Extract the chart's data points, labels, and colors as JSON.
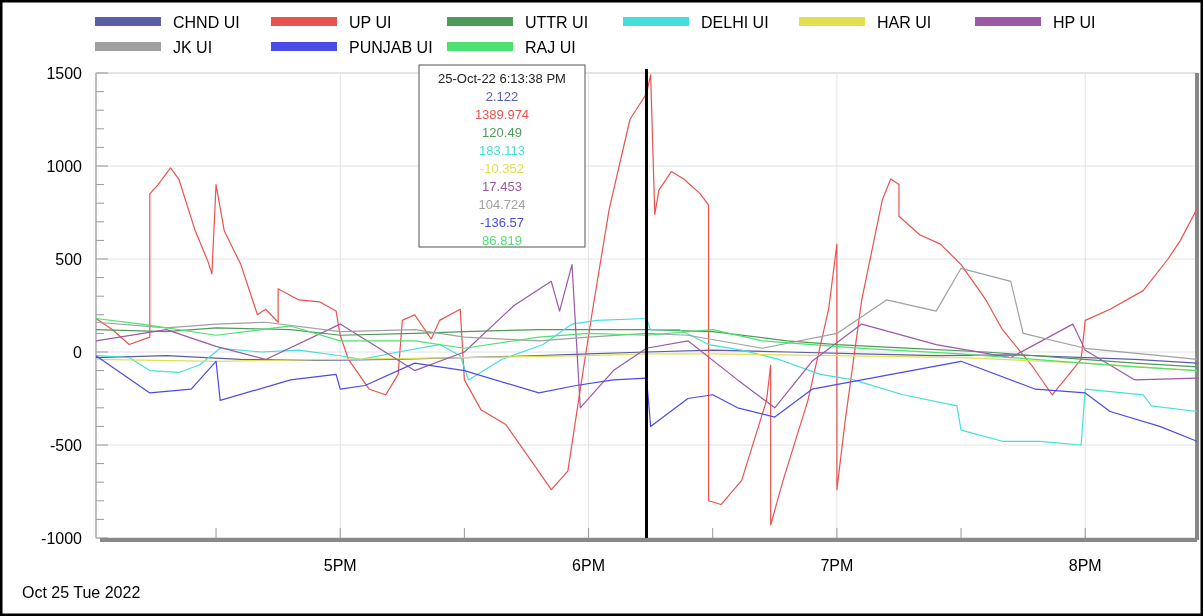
{
  "chart_data": {
    "type": "line",
    "xlim": [
      "2022-10-25T16:01",
      "2022-10-25T20:27"
    ],
    "xticks": [
      {
        "value": "2022-10-25T16:30",
        "label": null
      },
      {
        "value": "2022-10-25T17:00",
        "label": "5PM"
      },
      {
        "value": "2022-10-25T17:30",
        "label": null
      },
      {
        "value": "2022-10-25T18:00",
        "label": "6PM"
      },
      {
        "value": "2022-10-25T18:30",
        "label": null
      },
      {
        "value": "2022-10-25T19:00",
        "label": "7PM"
      },
      {
        "value": "2022-10-25T19:30",
        "label": null
      },
      {
        "value": "2022-10-25T20:00",
        "label": "8PM"
      }
    ],
    "ylim": [
      -1000,
      1500
    ],
    "yticks": [
      -1000,
      {
        "value": -900,
        "label": null
      },
      {
        "value": -800,
        "label": null
      },
      {
        "value": -700,
        "label": null
      },
      {
        "value": -600,
        "label": null
      },
      -500,
      {
        "value": -400,
        "label": null
      },
      {
        "value": -300,
        "label": null
      },
      {
        "value": -200,
        "label": null
      },
      {
        "value": -100,
        "label": null
      },
      0,
      {
        "value": 100,
        "label": null
      },
      {
        "value": 200,
        "label": null
      },
      {
        "value": 300,
        "label": null
      },
      {
        "value": 400,
        "label": null
      },
      500,
      {
        "value": 600,
        "label": null
      },
      {
        "value": 700,
        "label": null
      },
      {
        "value": 800,
        "label": null
      },
      {
        "value": 900,
        "label": null
      },
      1000,
      {
        "value": 1100,
        "label": null
      },
      {
        "value": 1200,
        "label": null
      },
      {
        "value": 1300,
        "label": null
      },
      {
        "value": 1400,
        "label": null
      },
      1500
    ],
    "grid": true,
    "legend": "top",
    "ref_lines": [
      {
        "axis": "x",
        "value": "2022-10-25T18:14",
        "color": "#000000"
      }
    ],
    "annotations": [
      "Oct 25 Tue 2022",
      "25-Oct-22  6:13:38 PM",
      "2.122",
      "1389.974",
      "120.49",
      "183.113",
      "-10.352",
      "17.453",
      "104.724",
      "-136.57",
      "86.819"
    ],
    "series": [
      {
        "name": "CHND UI",
        "color": "#5b5ea6",
        "x": [
          "2022-10-25T16:01",
          "2022-10-25T16:18",
          "2022-10-25T16:36",
          "2022-10-25T16:54",
          "2022-10-25T17:12",
          "2022-10-25T17:30",
          "2022-10-25T17:48",
          "2022-10-25T18:00",
          "2022-10-25T18:14",
          "2022-10-25T18:30",
          "2022-10-25T18:48",
          "2022-10-25T19:06",
          "2022-10-25T19:24",
          "2022-10-25T19:42",
          "2022-10-25T20:00",
          "2022-10-25T20:12",
          "2022-10-25T20:27"
        ],
        "values": [
          -30,
          -20,
          -40,
          -45,
          -40,
          -30,
          -20,
          -10,
          0,
          10,
          0,
          -10,
          -20,
          -15,
          -30,
          -40,
          -60
        ]
      },
      {
        "name": "UP UI",
        "color": "#e8534f",
        "x": [
          "2022-10-25T16:01",
          "2022-10-25T16:05",
          "2022-10-25T16:09",
          "2022-10-25T16:14",
          "2022-10-25T16:14",
          "2022-10-25T16:16",
          "2022-10-25T16:19",
          "2022-10-25T16:21",
          "2022-10-25T16:25",
          "2022-10-25T16:28",
          "2022-10-25T16:29",
          "2022-10-25T16:30",
          "2022-10-25T16:32",
          "2022-10-25T16:36",
          "2022-10-25T16:40",
          "2022-10-25T16:42",
          "2022-10-25T16:45",
          "2022-10-25T16:45",
          "2022-10-25T16:50",
          "2022-10-25T16:55",
          "2022-10-25T16:59",
          "2022-10-25T17:00",
          "2022-10-25T17:02",
          "2022-10-25T17:07",
          "2022-10-25T17:11",
          "2022-10-25T17:14",
          "2022-10-25T17:15",
          "2022-10-25T17:18",
          "2022-10-25T17:22",
          "2022-10-25T17:24",
          "2022-10-25T17:29",
          "2022-10-25T17:30",
          "2022-10-25T17:34",
          "2022-10-25T17:40",
          "2022-10-25T17:46",
          "2022-10-25T17:51",
          "2022-10-25T17:55",
          "2022-10-25T17:58",
          "2022-10-25T18:01",
          "2022-10-25T18:05",
          "2022-10-25T18:10",
          "2022-10-25T18:14",
          "2022-10-25T18:15",
          "2022-10-25T18:16",
          "2022-10-25T18:17",
          "2022-10-25T18:20",
          "2022-10-25T18:23",
          "2022-10-25T18:27",
          "2022-10-25T18:29",
          "2022-10-25T18:29",
          "2022-10-25T18:32",
          "2022-10-25T18:37",
          "2022-10-25T18:43",
          "2022-10-25T18:44",
          "2022-10-25T18:44",
          "2022-10-25T18:47",
          "2022-10-25T18:53",
          "2022-10-25T18:58",
          "2022-10-25T19:00",
          "2022-10-25T19:00",
          "2022-10-25T19:02",
          "2022-10-25T19:06",
          "2022-10-25T19:11",
          "2022-10-25T19:13",
          "2022-10-25T19:15",
          "2022-10-25T19:15",
          "2022-10-25T19:20",
          "2022-10-25T19:25",
          "2022-10-25T19:30",
          "2022-10-25T19:36",
          "2022-10-25T19:40",
          "2022-10-25T19:47",
          "2022-10-25T19:52",
          "2022-10-25T19:55",
          "2022-10-25T19:59",
          "2022-10-25T20:00",
          "2022-10-25T20:06",
          "2022-10-25T20:14",
          "2022-10-25T20:20",
          "2022-10-25T20:23",
          "2022-10-25T20:27"
        ],
        "values": [
          180,
          120,
          40,
          80,
          850,
          900,
          990,
          930,
          650,
          490,
          420,
          900,
          650,
          470,
          200,
          230,
          160,
          340,
          280,
          270,
          220,
          90,
          -40,
          -200,
          -230,
          -120,
          170,
          200,
          70,
          170,
          230,
          -150,
          -310,
          -390,
          -580,
          -740,
          -640,
          -200,
          230,
          770,
          1250,
          1390,
          1490,
          740,
          870,
          970,
          930,
          850,
          790,
          -800,
          -820,
          -690,
          -260,
          -70,
          -930,
          -690,
          -260,
          230,
          580,
          -740,
          -370,
          280,
          820,
          930,
          900,
          730,
          630,
          580,
          470,
          280,
          120,
          -70,
          -230,
          -150,
          -40,
          170,
          230,
          330,
          500,
          600,
          770
        ]
      },
      {
        "name": "UTTR UI",
        "color": "#4f9a5a",
        "x": [
          "2022-10-25T16:01",
          "2022-10-25T16:18",
          "2022-10-25T16:30",
          "2022-10-25T16:48",
          "2022-10-25T17:00",
          "2022-10-25T17:18",
          "2022-10-25T17:30",
          "2022-10-25T17:48",
          "2022-10-25T18:14",
          "2022-10-25T18:30",
          "2022-10-25T18:48",
          "2022-10-25T19:00",
          "2022-10-25T19:18",
          "2022-10-25T19:36",
          "2022-10-25T19:54",
          "2022-10-25T20:12",
          "2022-10-25T20:27"
        ],
        "values": [
          120,
          110,
          130,
          120,
          90,
          100,
          110,
          120,
          120,
          110,
          60,
          40,
          20,
          0,
          -30,
          -60,
          -80
        ]
      },
      {
        "name": "DELHI UI",
        "color": "#45dede",
        "x": [
          "2022-10-25T16:01",
          "2022-10-25T16:09",
          "2022-10-25T16:14",
          "2022-10-25T16:21",
          "2022-10-25T16:26",
          "2022-10-25T16:31",
          "2022-10-25T16:41",
          "2022-10-25T16:50",
          "2022-10-25T17:00",
          "2022-10-25T17:05",
          "2022-10-25T17:14",
          "2022-10-25T17:24",
          "2022-10-25T17:29",
          "2022-10-25T17:31",
          "2022-10-25T17:39",
          "2022-10-25T17:49",
          "2022-10-25T17:56",
          "2022-10-25T18:02",
          "2022-10-25T18:14",
          "2022-10-25T18:15",
          "2022-10-25T18:22",
          "2022-10-25T18:29",
          "2022-10-25T18:37",
          "2022-10-25T18:46",
          "2022-10-25T18:56",
          "2022-10-25T19:04",
          "2022-10-25T19:16",
          "2022-10-25T19:29",
          "2022-10-25T19:30",
          "2022-10-25T19:40",
          "2022-10-25T19:49",
          "2022-10-25T19:59",
          "2022-10-25T20:00",
          "2022-10-25T20:14",
          "2022-10-25T20:16",
          "2022-10-25T20:27"
        ],
        "values": [
          -20,
          -30,
          -100,
          -110,
          -70,
          20,
          0,
          10,
          -20,
          -40,
          0,
          40,
          -20,
          -150,
          -40,
          40,
          150,
          170,
          180,
          120,
          120,
          40,
          10,
          -40,
          -120,
          -150,
          -230,
          -290,
          -420,
          -480,
          -480,
          -500,
          -200,
          -230,
          -290,
          -320
        ]
      },
      {
        "name": "HAR UI",
        "color": "#e0e050",
        "x": [
          "2022-10-25T16:01",
          "2022-10-25T16:30",
          "2022-10-25T17:00",
          "2022-10-25T17:30",
          "2022-10-25T18:00",
          "2022-10-25T18:14",
          "2022-10-25T18:30",
          "2022-10-25T19:00",
          "2022-10-25T19:30",
          "2022-10-25T20:00",
          "2022-10-25T20:27"
        ],
        "values": [
          -40,
          -50,
          -40,
          -30,
          -20,
          -10,
          -10,
          -20,
          -30,
          -60,
          -100
        ]
      },
      {
        "name": "HP UI",
        "color": "#9b59a6",
        "x": [
          "2022-10-25T16:01",
          "2022-10-25T16:18",
          "2022-10-25T16:30",
          "2022-10-25T16:42",
          "2022-10-25T17:00",
          "2022-10-25T17:18",
          "2022-10-25T17:30",
          "2022-10-25T17:42",
          "2022-10-25T17:51",
          "2022-10-25T17:53",
          "2022-10-25T17:56",
          "2022-10-25T17:58",
          "2022-10-25T18:06",
          "2022-10-25T18:14",
          "2022-10-25T18:24",
          "2022-10-25T18:36",
          "2022-10-25T18:45",
          "2022-10-25T18:54",
          "2022-10-25T19:06",
          "2022-10-25T19:24",
          "2022-10-25T19:42",
          "2022-10-25T19:57",
          "2022-10-25T20:00",
          "2022-10-25T20:12",
          "2022-10-25T20:27"
        ],
        "values": [
          60,
          120,
          30,
          -40,
          150,
          -100,
          0,
          250,
          380,
          220,
          470,
          -300,
          -100,
          20,
          60,
          -150,
          -300,
          -50,
          150,
          40,
          -30,
          150,
          10,
          -150,
          -140
        ]
      },
      {
        "name": "JK UI",
        "color": "#a0a0a0",
        "x": [
          "2022-10-25T16:01",
          "2022-10-25T16:18",
          "2022-10-25T16:30",
          "2022-10-25T16:42",
          "2022-10-25T17:00",
          "2022-10-25T17:18",
          "2022-10-25T17:30",
          "2022-10-25T17:48",
          "2022-10-25T18:00",
          "2022-10-25T18:14",
          "2022-10-25T18:24",
          "2022-10-25T18:42",
          "2022-10-25T19:00",
          "2022-10-25T19:12",
          "2022-10-25T19:24",
          "2022-10-25T19:30",
          "2022-10-25T19:42",
          "2022-10-25T19:45",
          "2022-10-25T20:00",
          "2022-10-25T20:18",
          "2022-10-25T20:27"
        ],
        "values": [
          160,
          130,
          150,
          160,
          110,
          120,
          80,
          60,
          80,
          100,
          90,
          20,
          100,
          280,
          220,
          450,
          380,
          100,
          20,
          -20,
          -40
        ]
      },
      {
        "name": "PUNJAB UI",
        "color": "#4b4be8",
        "x": [
          "2022-10-25T16:01",
          "2022-10-25T16:14",
          "2022-10-25T16:24",
          "2022-10-25T16:30",
          "2022-10-25T16:31",
          "2022-10-25T16:48",
          "2022-10-25T16:59",
          "2022-10-25T17:00",
          "2022-10-25T17:06",
          "2022-10-25T17:18",
          "2022-10-25T17:30",
          "2022-10-25T17:48",
          "2022-10-25T17:57",
          "2022-10-25T18:06",
          "2022-10-25T18:14",
          "2022-10-25T18:15",
          "2022-10-25T18:24",
          "2022-10-25T18:30",
          "2022-10-25T18:36",
          "2022-10-25T18:45",
          "2022-10-25T18:54",
          "2022-10-25T19:06",
          "2022-10-25T19:18",
          "2022-10-25T19:30",
          "2022-10-25T19:48",
          "2022-10-25T20:00",
          "2022-10-25T20:06",
          "2022-10-25T20:18",
          "2022-10-25T20:27"
        ],
        "values": [
          -20,
          -220,
          -200,
          -50,
          -260,
          -150,
          -120,
          -200,
          -180,
          -60,
          -100,
          -220,
          -180,
          -150,
          -140,
          -400,
          -250,
          -230,
          -300,
          -350,
          -200,
          -150,
          -100,
          -50,
          -200,
          -220,
          -320,
          -400,
          -480
        ]
      },
      {
        "name": "RAJ UI",
        "color": "#4ee070",
        "x": [
          "2022-10-25T16:01",
          "2022-10-25T16:12",
          "2022-10-25T16:30",
          "2022-10-25T16:48",
          "2022-10-25T17:00",
          "2022-10-25T17:18",
          "2022-10-25T17:30",
          "2022-10-25T17:48",
          "2022-10-25T18:00",
          "2022-10-25T18:14",
          "2022-10-25T18:30",
          "2022-10-25T18:42",
          "2022-10-25T18:54",
          "2022-10-25T19:06",
          "2022-10-25T19:30",
          "2022-10-25T19:54",
          "2022-10-25T20:12",
          "2022-10-25T20:27"
        ],
        "values": [
          180,
          150,
          90,
          140,
          60,
          60,
          20,
          80,
          100,
          90,
          120,
          60,
          40,
          20,
          -10,
          -50,
          -80,
          -100
        ]
      }
    ]
  }
}
